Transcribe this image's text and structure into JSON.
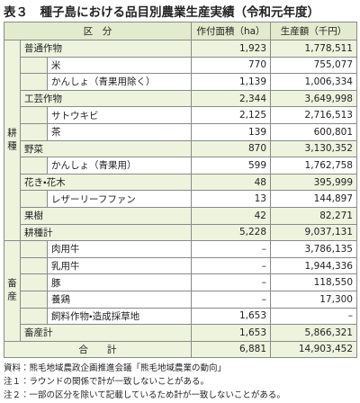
{
  "title": "表３　種子島における品目別農業生産実績（令和元年度）",
  "table": {
    "header": [
      "区　分",
      "作付面積（ha）",
      "生産額（千円）"
    ],
    "groups": [
      {
        "label": "耕種",
        "rows": [
          {
            "label": "普通作物",
            "indent": false,
            "area": "1,923",
            "value": "1,778,511"
          },
          {
            "label": "米",
            "indent": true,
            "area": "770",
            "value": "755,077"
          },
          {
            "label": "かんしょ（青果用除く）",
            "indent": true,
            "area": "1,139",
            "value": "1,006,334"
          },
          {
            "label": "工芸作物",
            "indent": false,
            "area": "2,344",
            "value": "3,649,998"
          },
          {
            "label": "サトウキビ",
            "indent": true,
            "area": "2,125",
            "value": "2,716,513"
          },
          {
            "label": "茶",
            "indent": true,
            "area": "139",
            "value": "600,801"
          },
          {
            "label": "野菜",
            "indent": false,
            "area": "870",
            "value": "3,130,352"
          },
          {
            "label": "かんしょ（青果用）",
            "indent": true,
            "area": "599",
            "value": "1,762,758"
          },
          {
            "label": "花き・花木",
            "indent": false,
            "area": "48",
            "value": "395,999"
          },
          {
            "label": "レザーリーフファン",
            "indent": true,
            "area": "13",
            "value": "144,897"
          },
          {
            "label": "果樹",
            "indent": false,
            "area": "42",
            "value": "82,271"
          },
          {
            "label": "耕種計",
            "indent": false,
            "area": "5,228",
            "value": "9,037,131"
          }
        ]
      },
      {
        "label": "畜産",
        "rows": [
          {
            "label": "肉用牛",
            "indent": true,
            "area": "–",
            "value": "3,786,135"
          },
          {
            "label": "乳用牛",
            "indent": true,
            "area": "–",
            "value": "1,944,336"
          },
          {
            "label": "豚",
            "indent": true,
            "area": "–",
            "value": "118,550"
          },
          {
            "label": "養鶏",
            "indent": true,
            "area": "–",
            "value": "17,300"
          },
          {
            "label": "飼料作物・造成採草地",
            "indent": true,
            "area": "1,653",
            "value": "–"
          },
          {
            "label": "畜産計",
            "indent": false,
            "area": "1,653",
            "value": "5,866,321"
          }
        ]
      }
    ],
    "total": {
      "label": "合　　計",
      "area": "6,881",
      "value": "14,903,452"
    }
  },
  "notes": [
    "資料：熊毛地域農政企画推進会議「熊毛地域農業の動向」",
    "注１：ラウンドの関係で計が一致しないことがある。",
    "注２：一部の区分を除いて記載しているため計が一致しないことがある。"
  ]
}
